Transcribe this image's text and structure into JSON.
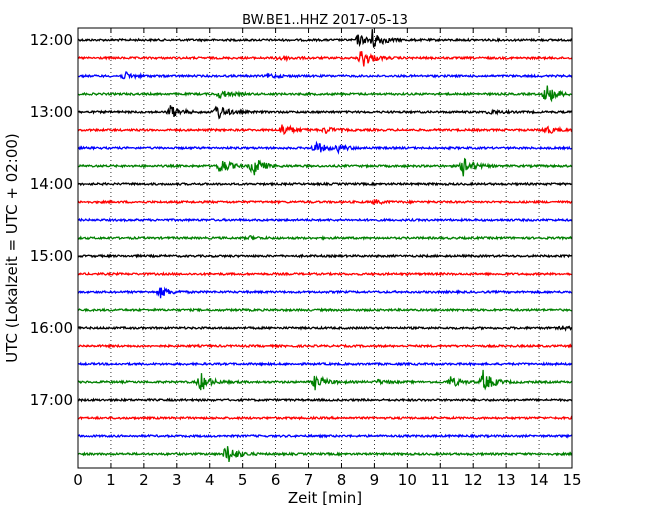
{
  "chart_data": {
    "type": "line",
    "title": "BW.BE1..HHZ 2017-05-13",
    "xlabel": "Zeit  [min]",
    "ylabel": "UTC (Lokalzeit = UTC + 02:00)",
    "xlim": [
      0,
      15
    ],
    "x_ticks": [
      "0",
      "1",
      "2",
      "3",
      "4",
      "5",
      "6",
      "7",
      "8",
      "9",
      "10",
      "11",
      "12",
      "13",
      "14",
      "15"
    ],
    "y_ticks": [
      "12:00",
      "13:00",
      "14:00",
      "15:00",
      "16:00",
      "17:00"
    ],
    "grid": {
      "vertical_dotted": true
    },
    "trace_colors": [
      "#000000",
      "#ff0000",
      "#0000ff",
      "#008000"
    ],
    "traces": [
      {
        "start": "12:00",
        "events": [
          {
            "min": 8.9,
            "amp": 1.0
          },
          {
            "min": 8.5,
            "amp": 0.5
          }
        ]
      },
      {
        "start": "12:15",
        "events": [
          {
            "min": 8.6,
            "amp": 1.0
          },
          {
            "min": 6.1,
            "amp": 0.3
          }
        ]
      },
      {
        "start": "12:30",
        "events": [
          {
            "min": 1.4,
            "amp": 0.35
          },
          {
            "min": 5.8,
            "amp": 0.2
          }
        ]
      },
      {
        "start": "12:45",
        "events": [
          {
            "min": 14.2,
            "amp": 1.0
          },
          {
            "min": 4.3,
            "amp": 0.4
          }
        ]
      },
      {
        "start": "13:00",
        "events": [
          {
            "min": 2.8,
            "amp": 0.6
          },
          {
            "min": 4.2,
            "amp": 0.8
          },
          {
            "min": 12.5,
            "amp": 0.2
          }
        ]
      },
      {
        "start": "13:15",
        "events": [
          {
            "min": 6.2,
            "amp": 0.6
          },
          {
            "min": 7.5,
            "amp": 0.3
          },
          {
            "min": 14.2,
            "amp": 0.4
          }
        ]
      },
      {
        "start": "13:30",
        "events": [
          {
            "min": 7.2,
            "amp": 0.6
          },
          {
            "min": 7.9,
            "amp": 0.3
          }
        ]
      },
      {
        "start": "13:45",
        "events": [
          {
            "min": 4.3,
            "amp": 0.8
          },
          {
            "min": 5.3,
            "amp": 1.0
          },
          {
            "min": 11.7,
            "amp": 0.9
          }
        ]
      },
      {
        "start": "14:00",
        "events": []
      },
      {
        "start": "14:15",
        "events": [
          {
            "min": 9.0,
            "amp": 0.2
          }
        ]
      },
      {
        "start": "14:30",
        "events": []
      },
      {
        "start": "14:45",
        "events": [
          {
            "min": 5.2,
            "amp": 0.15
          }
        ]
      },
      {
        "start": "15:00",
        "events": []
      },
      {
        "start": "15:15",
        "events": []
      },
      {
        "start": "15:30",
        "events": [
          {
            "min": 2.5,
            "amp": 0.5
          }
        ]
      },
      {
        "start": "15:45",
        "events": []
      },
      {
        "start": "16:00",
        "events": [
          {
            "min": 14.7,
            "amp": 0.15
          }
        ]
      },
      {
        "start": "16:15",
        "events": []
      },
      {
        "start": "16:30",
        "events": []
      },
      {
        "start": "16:45",
        "events": [
          {
            "min": 3.7,
            "amp": 0.9
          },
          {
            "min": 7.2,
            "amp": 0.7
          },
          {
            "min": 9.1,
            "amp": 0.2
          },
          {
            "min": 11.3,
            "amp": 0.5
          },
          {
            "min": 12.3,
            "amp": 1.0
          }
        ]
      },
      {
        "start": "17:00",
        "events": []
      },
      {
        "start": "17:15",
        "events": []
      },
      {
        "start": "17:30",
        "events": []
      },
      {
        "start": "17:45",
        "events": [
          {
            "min": 4.5,
            "amp": 1.0
          }
        ]
      }
    ]
  }
}
